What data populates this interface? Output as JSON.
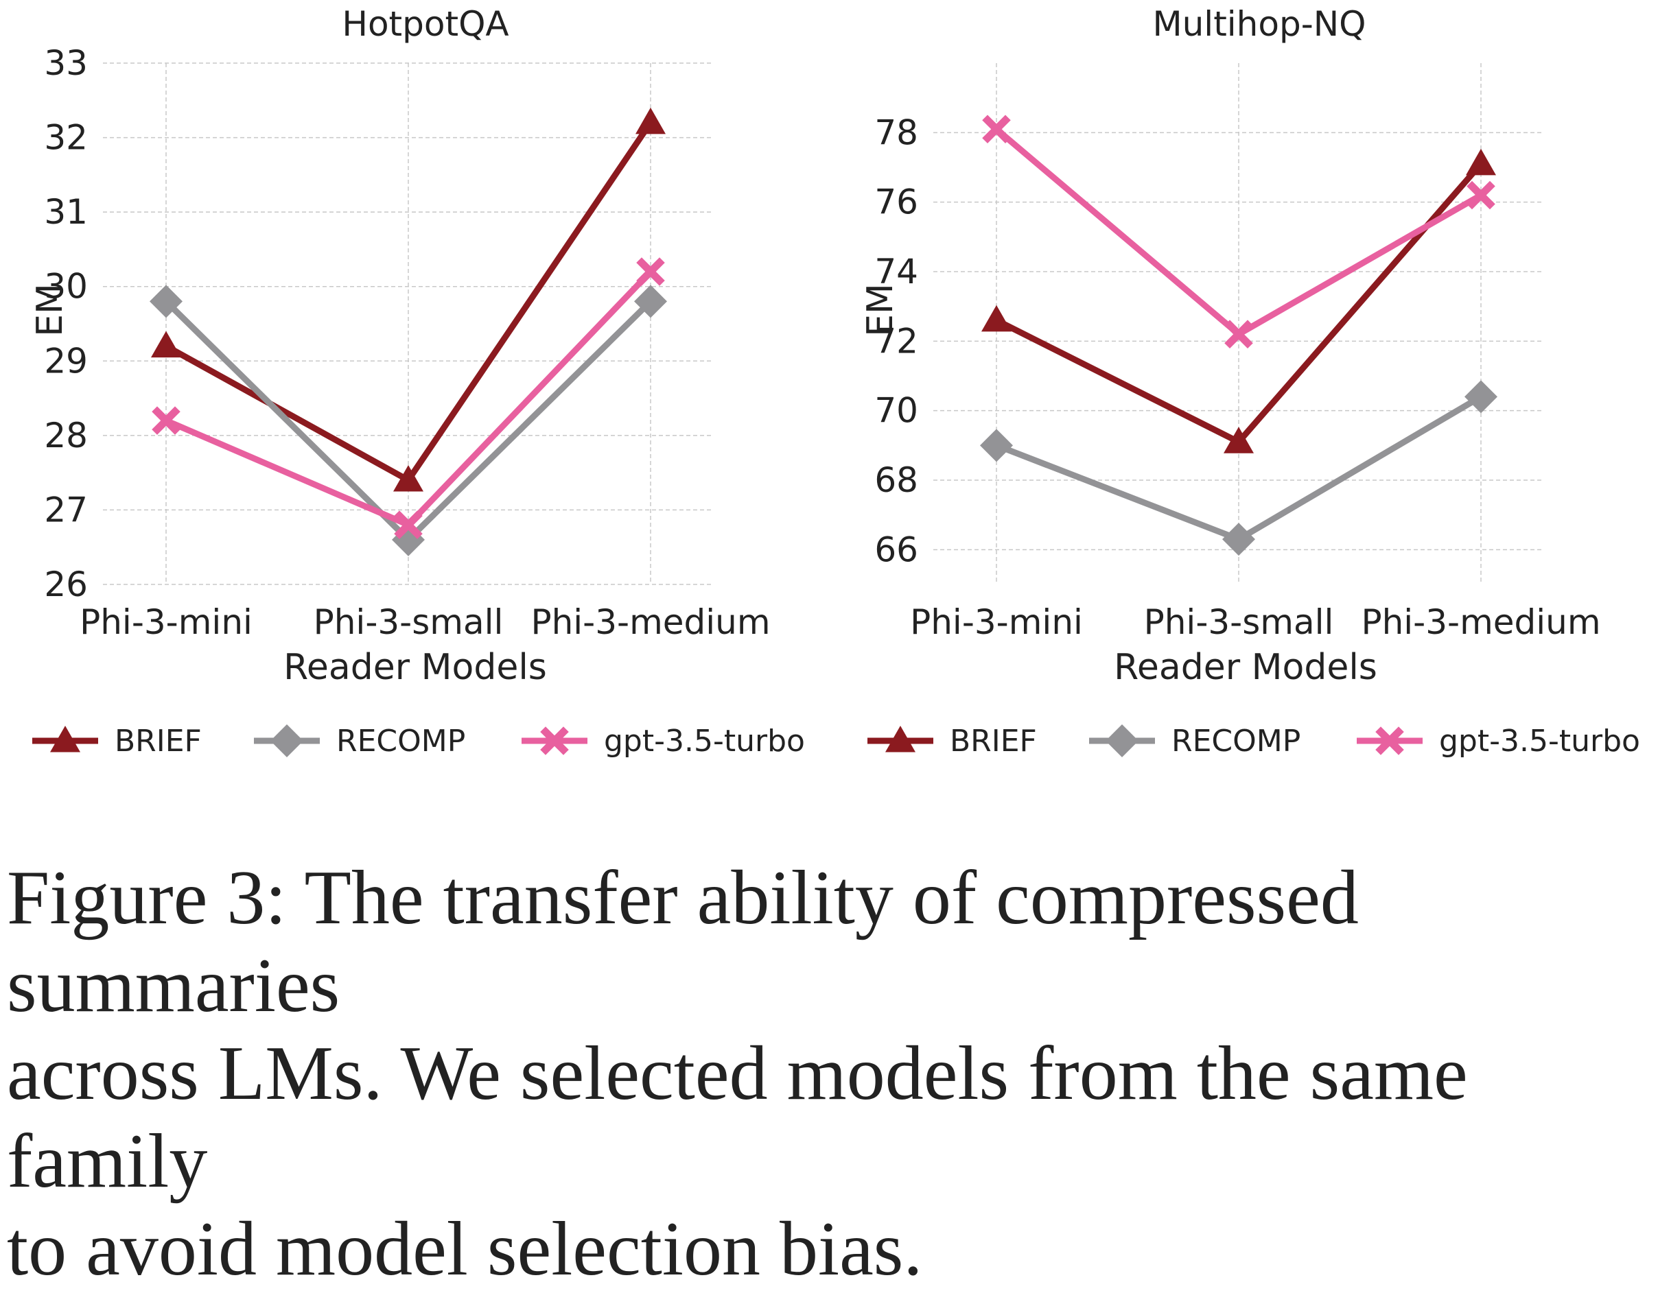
{
  "chart_data": [
    {
      "type": "line",
      "title": "HotpotQA",
      "xlabel": "Reader Models",
      "ylabel": "EM",
      "categories": [
        "Phi-3-mini",
        "Phi-3-small",
        "Phi-3-medium"
      ],
      "ylim": [
        26,
        33
      ],
      "yticks": [
        26,
        27,
        28,
        29,
        30,
        31,
        32,
        33
      ],
      "grid": true,
      "series": [
        {
          "name": "BRIEF",
          "values": [
            29.2,
            27.4,
            32.2
          ],
          "color": "#8b1a1f",
          "marker": "triangle"
        },
        {
          "name": "RECOMP",
          "values": [
            29.8,
            26.6,
            29.8
          ],
          "color": "#939396",
          "marker": "diamond"
        },
        {
          "name": "gpt-3.5-turbo",
          "values": [
            28.2,
            26.8,
            30.2
          ],
          "color": "#e8609f",
          "marker": "x"
        }
      ]
    },
    {
      "type": "line",
      "title": "Multihop-NQ",
      "xlabel": "Reader Models",
      "ylabel": "EM",
      "categories": [
        "Phi-3-mini",
        "Phi-3-small",
        "Phi-3-medium"
      ],
      "ylim": [
        65,
        80
      ],
      "yticks": [
        66,
        68,
        70,
        72,
        74,
        76,
        78
      ],
      "grid": true,
      "series": [
        {
          "name": "BRIEF",
          "values": [
            72.6,
            69.1,
            77.1
          ],
          "color": "#8b1a1f",
          "marker": "triangle"
        },
        {
          "name": "RECOMP",
          "values": [
            69.0,
            66.3,
            70.4
          ],
          "color": "#939396",
          "marker": "diamond"
        },
        {
          "name": "gpt-3.5-turbo",
          "values": [
            78.1,
            72.2,
            76.2
          ],
          "color": "#e8609f",
          "marker": "x"
        }
      ]
    }
  ],
  "legend": {
    "placement": "bottom",
    "items": [
      {
        "label": "BRIEF",
        "color": "#8b1a1f",
        "marker": "triangle"
      },
      {
        "label": "RECOMP",
        "color": "#939396",
        "marker": "diamond"
      },
      {
        "label": "gpt-3.5-turbo",
        "color": "#e8609f",
        "marker": "x"
      },
      {
        "label": "BRIEF",
        "color": "#8b1a1f",
        "marker": "triangle"
      },
      {
        "label": "RECOMP",
        "color": "#939396",
        "marker": "diamond"
      },
      {
        "label": "gpt-3.5-turbo",
        "color": "#e8609f",
        "marker": "x"
      }
    ]
  },
  "caption": {
    "lines": [
      "Figure 3: The transfer ability of compressed summaries",
      "across LMs. We selected models from the same family",
      "to avoid model selection bias."
    ]
  }
}
